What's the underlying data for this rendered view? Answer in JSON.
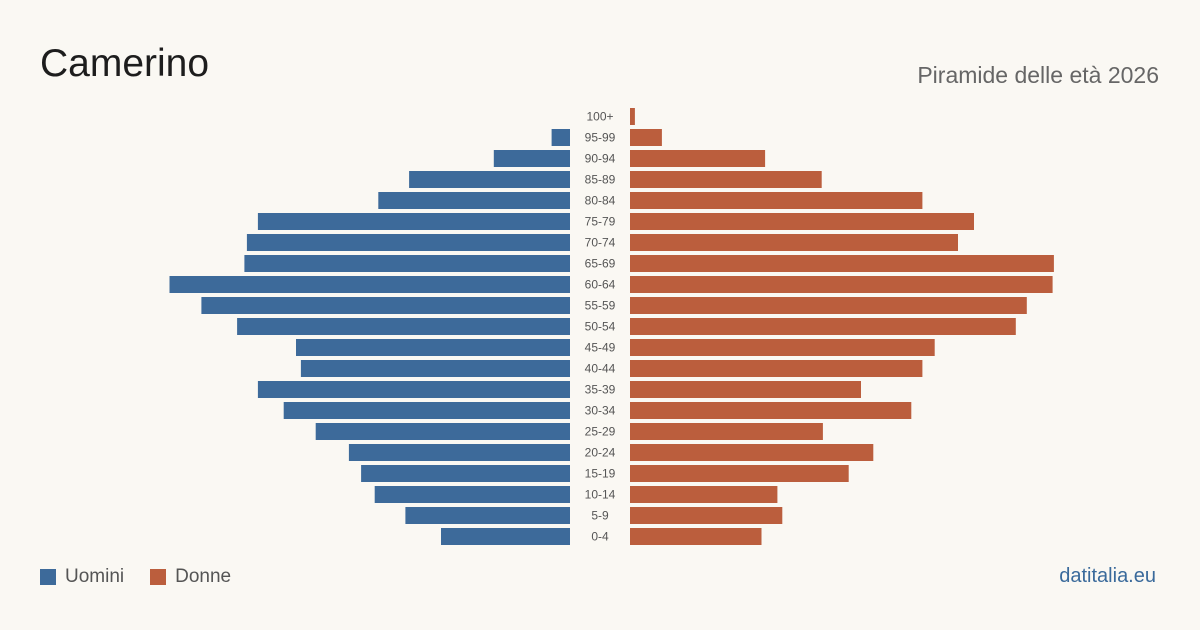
{
  "header": {
    "title": "Camerino",
    "subtitle": "Piramide delle età 2026"
  },
  "legend": {
    "men_label": "Uomini",
    "women_label": "Donne"
  },
  "brand": "datitalia.eu",
  "colors": {
    "men": "#3d6a9a",
    "women": "#bb5e3d",
    "background": "#faf8f3"
  },
  "chart_data": {
    "type": "bar",
    "orientation": "horizontal-pyramid",
    "categories": [
      "100+",
      "95-99",
      "90-94",
      "85-89",
      "80-84",
      "75-79",
      "70-74",
      "65-69",
      "60-64",
      "55-59",
      "50-54",
      "45-49",
      "40-44",
      "35-39",
      "30-34",
      "25-29",
      "20-24",
      "15-19",
      "10-14",
      "5-9",
      "0-4"
    ],
    "series": [
      {
        "name": "Uomini",
        "values": [
          0,
          15,
          62,
          131,
          156,
          254,
          263,
          265,
          326,
          300,
          271,
          223,
          219,
          254,
          233,
          207,
          180,
          170,
          159,
          134,
          105
        ]
      },
      {
        "name": "Donne",
        "values": [
          4,
          26,
          110,
          156,
          238,
          280,
          267,
          345,
          344,
          323,
          314,
          248,
          238,
          188,
          229,
          157,
          198,
          178,
          120,
          124,
          107
        ]
      }
    ],
    "xlim": [
      0,
      350
    ],
    "grid": false,
    "legend_position": "bottom-left"
  }
}
